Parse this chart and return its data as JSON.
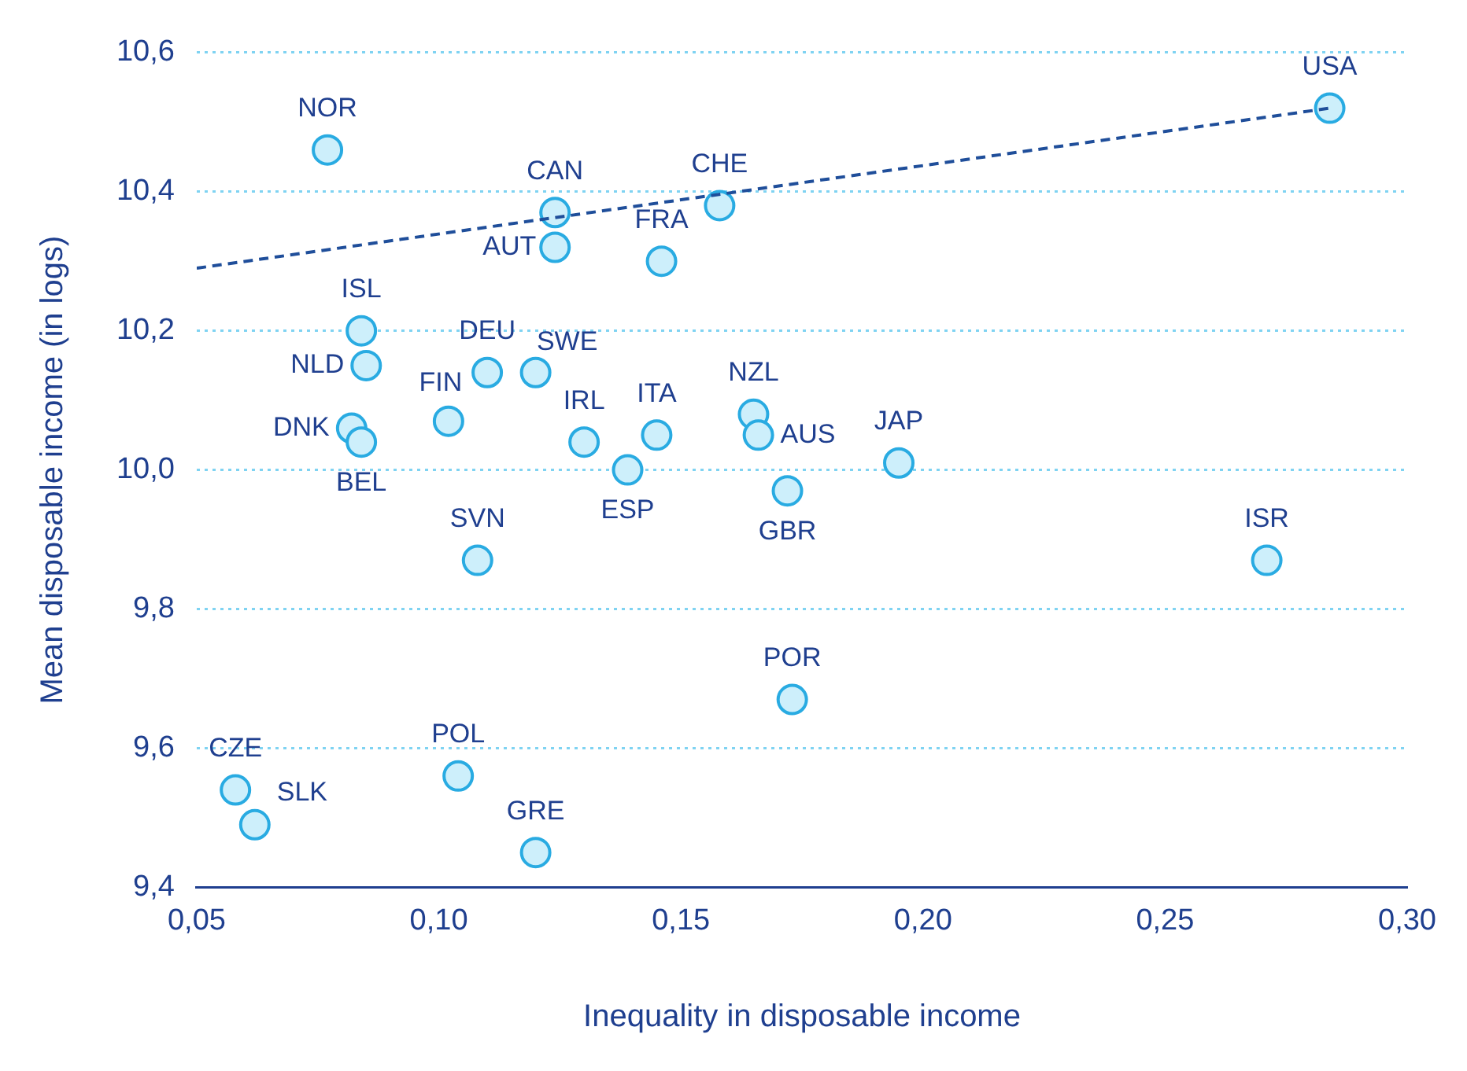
{
  "chart_data": {
    "type": "scatter",
    "xlabel": "Inequality in disposable income",
    "ylabel": "Mean disposable income (in logs)",
    "xlim": [
      0.05,
      0.3
    ],
    "xticks": [
      {
        "value": 0.05,
        "label": "0,05"
      },
      {
        "value": 0.1,
        "label": "0,10"
      },
      {
        "value": 0.15,
        "label": "0,15"
      },
      {
        "value": 0.2,
        "label": "0,20"
      },
      {
        "value": 0.25,
        "label": "0,25"
      },
      {
        "value": 0.3,
        "label": "0,30"
      }
    ],
    "ylim": [
      9.4,
      10.6
    ],
    "yticks": [
      {
        "value": 9.4,
        "label": "9,4"
      },
      {
        "value": 9.6,
        "label": "9,6"
      },
      {
        "value": 9.8,
        "label": "9,8"
      },
      {
        "value": 10.0,
        "label": "10,0"
      },
      {
        "value": 10.2,
        "label": "10,2"
      },
      {
        "value": 10.4,
        "label": "10,4"
      },
      {
        "value": 10.6,
        "label": "10,6"
      }
    ],
    "grid": "y",
    "legend": false,
    "series": [
      {
        "type": "scatter",
        "color": "#29abe2",
        "marker": "circle",
        "x": [
          0.284,
          0.077,
          0.124,
          0.158,
          0.124,
          0.146,
          0.084,
          0.085,
          0.11,
          0.12,
          0.102,
          0.082,
          0.084,
          0.13,
          0.145,
          0.139,
          0.165,
          0.166,
          0.172,
          0.195,
          0.271,
          0.108,
          0.173,
          0.104,
          0.058,
          0.062,
          0.12
        ],
        "values": [
          10.52,
          10.46,
          10.37,
          10.38,
          10.32,
          10.3,
          10.2,
          10.15,
          10.14,
          10.14,
          10.07,
          10.06,
          10.04,
          10.04,
          10.05,
          10.0,
          10.08,
          10.05,
          9.97,
          10.01,
          9.87,
          9.87,
          9.67,
          9.56,
          9.54,
          9.49,
          9.45
        ]
      },
      {
        "type": "line",
        "color": "#1f4e9a",
        "line_style": "dashed",
        "marker": "none",
        "x": [
          0.05,
          0.284
        ],
        "values": [
          10.29,
          10.52
        ]
      }
    ],
    "annotations": [
      {
        "text": "USA",
        "x": 0.284,
        "y": 10.52
      },
      {
        "text": "NOR",
        "x": 0.077,
        "y": 10.46
      },
      {
        "text": "CAN",
        "x": 0.124,
        "y": 10.37
      },
      {
        "text": "CHE",
        "x": 0.158,
        "y": 10.38
      },
      {
        "text": "AUT",
        "x": 0.124,
        "y": 10.32
      },
      {
        "text": "FRA",
        "x": 0.146,
        "y": 10.3
      },
      {
        "text": "ISL",
        "x": 0.084,
        "y": 10.2
      },
      {
        "text": "NLD",
        "x": 0.085,
        "y": 10.15
      },
      {
        "text": "DEU",
        "x": 0.11,
        "y": 10.14
      },
      {
        "text": "SWE",
        "x": 0.12,
        "y": 10.14
      },
      {
        "text": "FIN",
        "x": 0.102,
        "y": 10.07
      },
      {
        "text": "DNK",
        "x": 0.082,
        "y": 10.06
      },
      {
        "text": "BEL",
        "x": 0.084,
        "y": 10.04
      },
      {
        "text": "IRL",
        "x": 0.13,
        "y": 10.04
      },
      {
        "text": "ITA",
        "x": 0.145,
        "y": 10.05
      },
      {
        "text": "ESP",
        "x": 0.139,
        "y": 10.0
      },
      {
        "text": "NZL",
        "x": 0.165,
        "y": 10.08
      },
      {
        "text": "AUS",
        "x": 0.166,
        "y": 10.05
      },
      {
        "text": "GBR",
        "x": 0.172,
        "y": 9.97
      },
      {
        "text": "JAP",
        "x": 0.195,
        "y": 10.01
      },
      {
        "text": "ISR",
        "x": 0.271,
        "y": 9.87
      },
      {
        "text": "SVN",
        "x": 0.108,
        "y": 9.87
      },
      {
        "text": "POR",
        "x": 0.173,
        "y": 9.67
      },
      {
        "text": "POL",
        "x": 0.104,
        "y": 9.56
      },
      {
        "text": "CZE",
        "x": 0.058,
        "y": 9.54
      },
      {
        "text": "SLK",
        "x": 0.062,
        "y": 9.49
      },
      {
        "text": "GRE",
        "x": 0.12,
        "y": 9.45
      }
    ]
  }
}
